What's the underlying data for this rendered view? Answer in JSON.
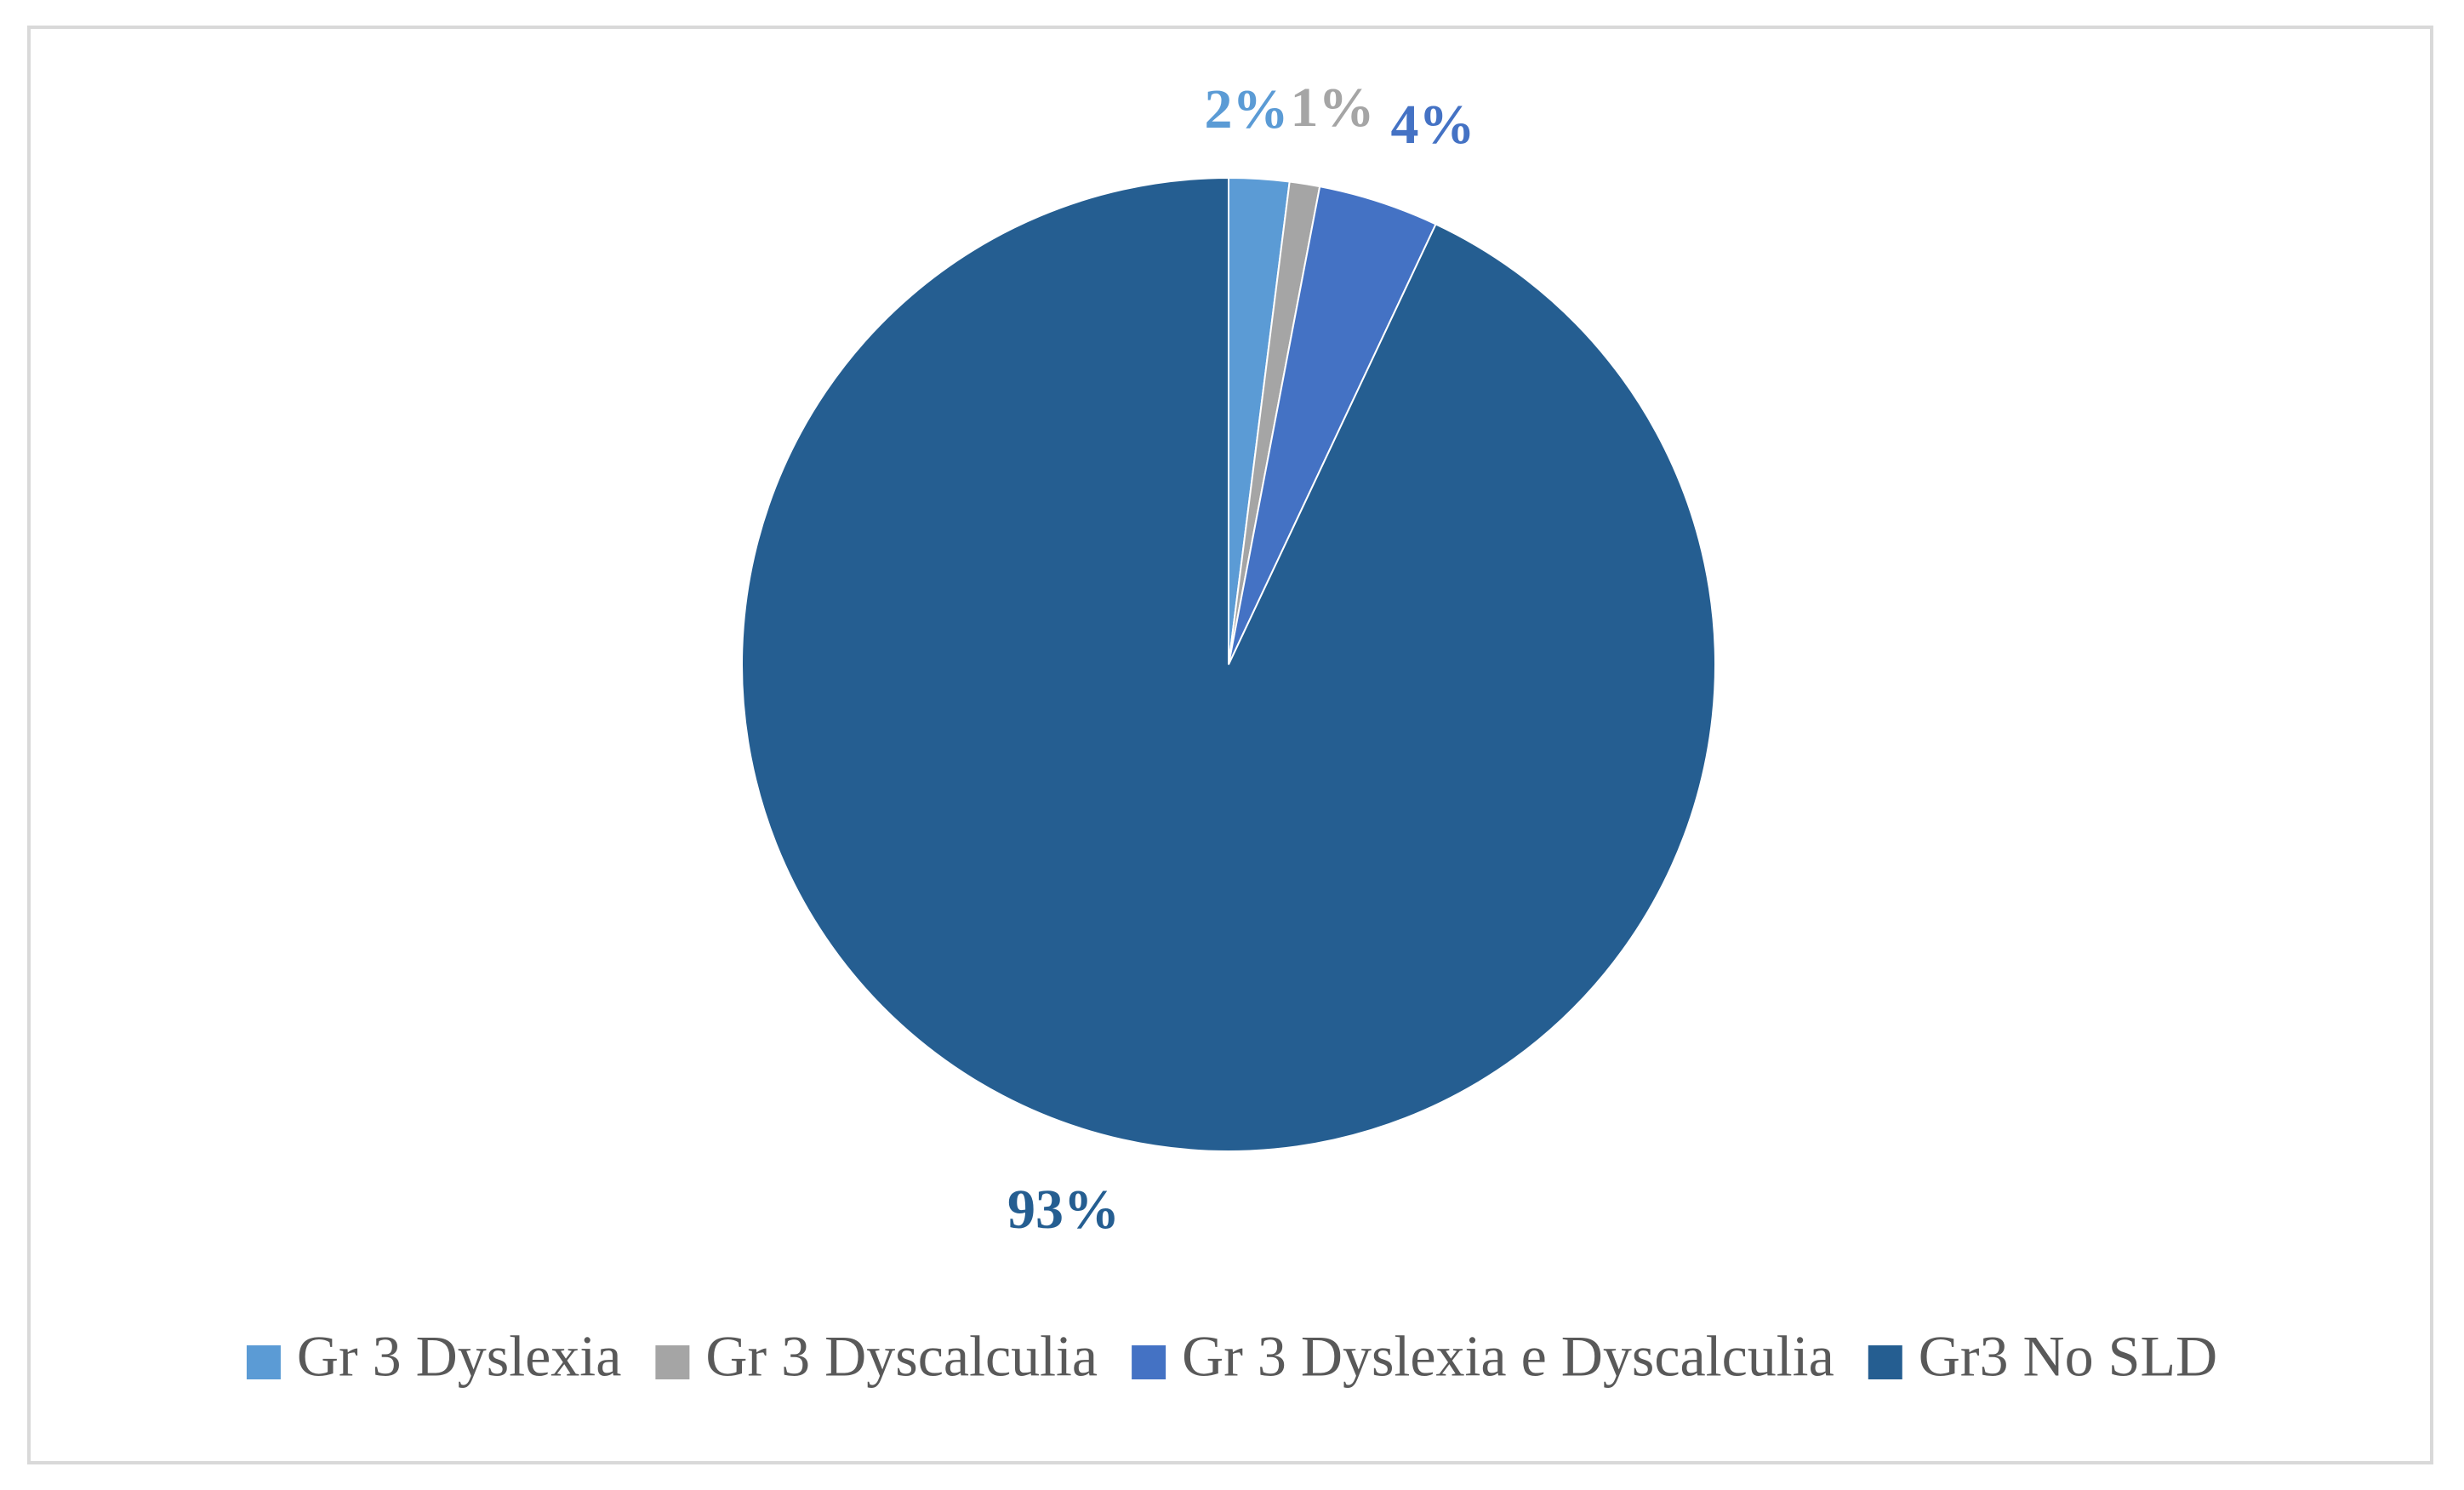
{
  "chart_data": {
    "type": "pie",
    "categories": [
      "Gr 3 Dyslexia",
      "Gr 3 Dyscalculia",
      "Gr 3 Dyslexia e Dyscalculia",
      "Gr3 No SLD"
    ],
    "values": [
      2,
      1,
      4,
      93
    ],
    "value_labels": [
      "2%",
      "1%",
      "4%",
      "93%"
    ],
    "colors": [
      "#5b9bd5",
      "#a5a5a5",
      "#4472c4",
      "#255e91"
    ],
    "legend": "bottom"
  }
}
